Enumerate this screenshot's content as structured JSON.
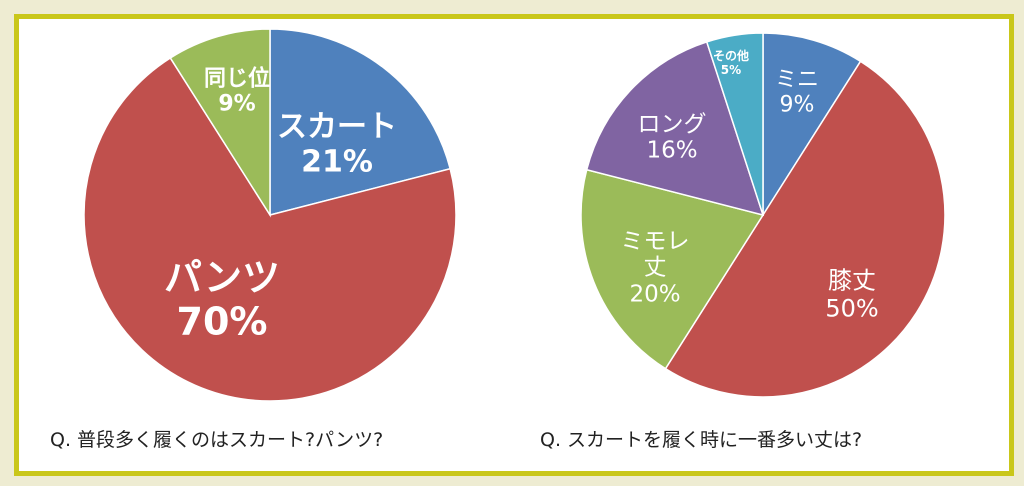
{
  "chart_data": [
    {
      "type": "pie",
      "title": "Q. 普段多く履くのはスカート?パンツ?",
      "slices": [
        {
          "label": "スカート",
          "value": 21,
          "text": "21%",
          "color": "#4f81bd"
        },
        {
          "label": "パンツ",
          "value": 70,
          "text": "70%",
          "color": "#c0504d"
        },
        {
          "label": "同じ位",
          "value": 9,
          "text": "9%",
          "color": "#9bbb59"
        }
      ]
    },
    {
      "type": "pie",
      "title": "Q. スカートを履く時に一番多い丈は?",
      "slices": [
        {
          "label": "ミニ",
          "value": 9,
          "text": "9%",
          "color": "#4f81bd"
        },
        {
          "label": "膝丈",
          "value": 50,
          "text": "50%",
          "color": "#c0504d"
        },
        {
          "label": "ミモレ丈",
          "value": 20,
          "text": "20%",
          "color": "#9bbb59"
        },
        {
          "label": "ロング",
          "value": 16,
          "text": "16%",
          "color": "#8064a2"
        },
        {
          "label": "その他",
          "value": 5,
          "text": "5%",
          "color": "#4bacc6"
        }
      ]
    }
  ]
}
